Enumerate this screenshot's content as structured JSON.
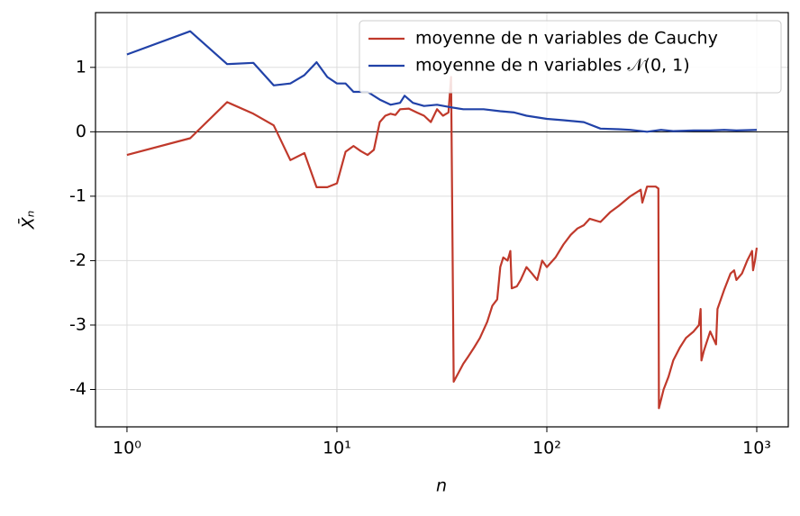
{
  "chart_data": {
    "type": "line",
    "xlabel": "n",
    "ylabel": "X̄ₙ",
    "xscale": "log",
    "grid": true,
    "hline": 0,
    "legend": "upper right",
    "xlim": [
      0.708,
      1413
    ],
    "ylim": [
      -4.58,
      1.85
    ],
    "xticks": [
      {
        "value": 1,
        "label": "10⁰"
      },
      {
        "value": 10,
        "label": "10¹"
      },
      {
        "value": 100,
        "label": "10²"
      },
      {
        "value": 1000,
        "label": "10³"
      }
    ],
    "yticks": [
      -4,
      -3,
      -2,
      -1,
      0,
      1
    ],
    "series": [
      {
        "name": "moyenne de n variables de Cauchy",
        "color": "#c0392b",
        "x": [
          1,
          2,
          3,
          4,
          5,
          6,
          7,
          8,
          9,
          10,
          11,
          12,
          13,
          14,
          15,
          16,
          17,
          18,
          19,
          20,
          22,
          24,
          26,
          28,
          30,
          32,
          34,
          35,
          36,
          40,
          42,
          45,
          48,
          52,
          55,
          58,
          60,
          62,
          65,
          67,
          68,
          72,
          75,
          80,
          85,
          90,
          95,
          100,
          110,
          120,
          130,
          140,
          150,
          160,
          180,
          200,
          220,
          250,
          280,
          285,
          300,
          330,
          340,
          342,
          360,
          380,
          400,
          430,
          460,
          500,
          530,
          540,
          545,
          560,
          600,
          640,
          650,
          700,
          750,
          780,
          800,
          850,
          900,
          950,
          960,
          980,
          1000
        ],
        "values": [
          -0.36,
          -0.1,
          0.46,
          0.28,
          0.1,
          -0.44,
          -0.33,
          -0.86,
          -0.86,
          -0.8,
          -0.31,
          -0.22,
          -0.3,
          -0.36,
          -0.28,
          0.15,
          0.25,
          0.28,
          0.26,
          0.35,
          0.36,
          0.3,
          0.25,
          0.15,
          0.35,
          0.25,
          0.3,
          0.85,
          -3.88,
          -3.6,
          -3.5,
          -3.35,
          -3.2,
          -2.95,
          -2.7,
          -2.6,
          -2.1,
          -1.95,
          -2.0,
          -1.85,
          -2.43,
          -2.4,
          -2.3,
          -2.1,
          -2.2,
          -2.3,
          -2.0,
          -2.1,
          -1.95,
          -1.75,
          -1.6,
          -1.5,
          -1.45,
          -1.35,
          -1.4,
          -1.25,
          -1.15,
          -1.0,
          -0.9,
          -1.1,
          -0.85,
          -0.85,
          -0.88,
          -4.29,
          -4.0,
          -3.8,
          -3.55,
          -3.35,
          -3.2,
          -3.1,
          -3.0,
          -2.75,
          -3.55,
          -3.4,
          -3.1,
          -3.3,
          -2.75,
          -2.45,
          -2.2,
          -2.15,
          -2.3,
          -2.2,
          -2.0,
          -1.85,
          -2.15,
          -2.0,
          -1.8
        ]
      },
      {
        "name": "moyenne de n variables 𝒩(0, 1)",
        "color": "#2142a8",
        "x": [
          1,
          2,
          3,
          4,
          5,
          6,
          7,
          8,
          9,
          10,
          11,
          12,
          14,
          16,
          18,
          20,
          21,
          23,
          26,
          30,
          35,
          40,
          50,
          60,
          70,
          80,
          100,
          120,
          150,
          180,
          220,
          250,
          300,
          350,
          400,
          500,
          600,
          700,
          800,
          1000
        ],
        "values": [
          1.2,
          1.56,
          1.05,
          1.07,
          0.72,
          0.75,
          0.88,
          1.08,
          0.85,
          0.75,
          0.75,
          0.62,
          0.62,
          0.5,
          0.42,
          0.45,
          0.56,
          0.45,
          0.4,
          0.42,
          0.38,
          0.35,
          0.35,
          0.32,
          0.3,
          0.25,
          0.2,
          0.18,
          0.15,
          0.05,
          0.04,
          0.03,
          0.0,
          0.03,
          0.01,
          0.02,
          0.02,
          0.03,
          0.02,
          0.03
        ]
      }
    ]
  }
}
